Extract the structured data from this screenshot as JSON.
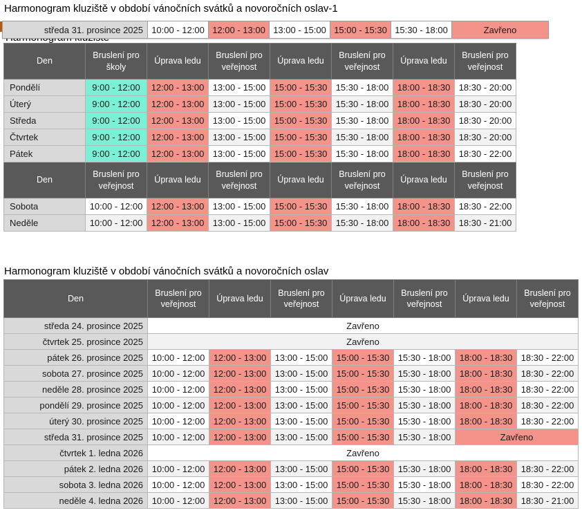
{
  "page": {
    "title1": "Harmonogram kluziště v období vánočních svátků a novoročních oslav-1",
    "title2": "Harmonogram kluziště v období vánočních svátků a novoročních oslav",
    "obscured_text": "Harmonogram kluziště"
  },
  "colors": {
    "header_bg": "#595959",
    "day_bg": "#D9D9D9",
    "alt_bg": "#F2F2F2",
    "red": "#F4938A",
    "cyan": "#7BF0D5"
  },
  "floating_row": {
    "day": "středa 31. prosince 2025",
    "cells": [
      {
        "t": "10:00 - 12:00"
      },
      {
        "t": "12:00 - 13:00",
        "c": "red"
      },
      {
        "t": "13:00 - 15:00"
      },
      {
        "t": "15:00 - 15:30",
        "c": "red"
      },
      {
        "t": "15:30 - 18:00"
      },
      {
        "t": "Zavřeno",
        "c": "red"
      }
    ]
  },
  "weekly_table": {
    "header_top": [
      "Den",
      "Bruslení pro školy",
      "Úprava ledu",
      "Bruslení pro veřejnost",
      "Úprava ledu",
      "Bruslení pro veřejnost",
      "Úprava ledu",
      "Bruslení pro veřejnost"
    ],
    "weekday_rows": [
      {
        "day": "Pondělí",
        "cells": [
          {
            "t": "9:00 - 12:00",
            "c": "cyan"
          },
          {
            "t": "12:00 - 13:00",
            "c": "red"
          },
          {
            "t": "13:00 - 15:00"
          },
          {
            "t": "15:00 - 15:30",
            "c": "red"
          },
          {
            "t": "15:30 - 18:00"
          },
          {
            "t": "18:00 - 18:30",
            "c": "red"
          },
          {
            "t": "18:30 - 20:00"
          }
        ]
      },
      {
        "day": "Úterý",
        "cells": [
          {
            "t": "9:00 - 12:00",
            "c": "cyan"
          },
          {
            "t": "12:00 - 13:00",
            "c": "red"
          },
          {
            "t": "13:00 - 15:00"
          },
          {
            "t": "15:00 - 15:30",
            "c": "red"
          },
          {
            "t": "15:30 - 18:00"
          },
          {
            "t": "18:00 - 18:30",
            "c": "red"
          },
          {
            "t": "18:30 - 20:00"
          }
        ]
      },
      {
        "day": "Středa",
        "cells": [
          {
            "t": "9:00 - 12:00",
            "c": "cyan"
          },
          {
            "t": "12:00 - 13:00",
            "c": "red"
          },
          {
            "t": "13:00 - 15:00"
          },
          {
            "t": "15:00 - 15:30",
            "c": "red"
          },
          {
            "t": "15:30 - 18:00"
          },
          {
            "t": "18:00 - 18:30",
            "c": "red"
          },
          {
            "t": "18:30 - 20:00"
          }
        ]
      },
      {
        "day": "Čtvrtek",
        "cells": [
          {
            "t": "9:00 - 12:00",
            "c": "cyan"
          },
          {
            "t": "12:00 - 13:00",
            "c": "red"
          },
          {
            "t": "13:00 - 15:00"
          },
          {
            "t": "15:00 - 15:30",
            "c": "red"
          },
          {
            "t": "15:30 - 18:00"
          },
          {
            "t": "18:00 - 18:30",
            "c": "red"
          },
          {
            "t": "18:30 - 20:00"
          }
        ]
      },
      {
        "day": "Pátek",
        "cells": [
          {
            "t": "9:00 - 12:00",
            "c": "cyan"
          },
          {
            "t": "12:00 - 13:00",
            "c": "red"
          },
          {
            "t": "13:00 - 15:00"
          },
          {
            "t": "15:00 - 15:30",
            "c": "red"
          },
          {
            "t": "15:30 - 18:00"
          },
          {
            "t": "18:00 - 18:30",
            "c": "red"
          },
          {
            "t": "18:30 - 22:00"
          }
        ]
      }
    ],
    "header_bottom": [
      "Den",
      "Bruslení pro veřejnost",
      "Úprava ledu",
      "Bruslení pro veřejnost",
      "Úprava ledu",
      "Bruslení pro veřejnost",
      "Úprava ledu",
      "Bruslení pro veřejnost"
    ],
    "weekend_rows": [
      {
        "day": "Sobota",
        "cells": [
          {
            "t": "10:00 - 12:00"
          },
          {
            "t": "12:00 - 13:00",
            "c": "red"
          },
          {
            "t": "13:00 - 15:00"
          },
          {
            "t": "15:00 - 15:30",
            "c": "red"
          },
          {
            "t": "15:30 - 18:00"
          },
          {
            "t": "18:00 - 18:30",
            "c": "red"
          },
          {
            "t": "18:30 - 22:00"
          }
        ]
      },
      {
        "day": "Neděle",
        "cells": [
          {
            "t": "10:00 - 12:00"
          },
          {
            "t": "12:00 - 13:00",
            "c": "red"
          },
          {
            "t": "13:00 - 15:00"
          },
          {
            "t": "15:00 - 15:30",
            "c": "red"
          },
          {
            "t": "15:30 - 18:00"
          },
          {
            "t": "18:00 - 18:30",
            "c": "red"
          },
          {
            "t": "18:30 - 21:00"
          }
        ]
      }
    ]
  },
  "holiday_table": {
    "header": [
      "Den",
      "Bruslení pro veřejnost",
      "Úprava ledu",
      "Bruslení pro veřejnost",
      "Úprava ledu",
      "Bruslení pro veřejnost",
      "Úprava ledu",
      "Bruslení pro veřejnost"
    ],
    "rows": [
      {
        "day": "středa 24. prosince 2025",
        "cells": [
          {
            "t": "Zavřeno",
            "s": 7
          }
        ]
      },
      {
        "day": "čtvrtek 25. prosince 2025",
        "cells": [
          {
            "t": "Zavřeno",
            "s": 7
          }
        ]
      },
      {
        "day": "pátek 26. prosince 2025",
        "cells": [
          {
            "t": "10:00 - 12:00"
          },
          {
            "t": "12:00 - 13:00",
            "c": "red"
          },
          {
            "t": "13:00 - 15:00"
          },
          {
            "t": "15:00 - 15:30",
            "c": "red"
          },
          {
            "t": "15:30 - 18:00"
          },
          {
            "t": "18:00 - 18:30",
            "c": "red"
          },
          {
            "t": "18:30 - 22:00"
          }
        ]
      },
      {
        "day": "sobota 27. prosince 2025",
        "cells": [
          {
            "t": "10:00 - 12:00"
          },
          {
            "t": "12:00 - 13:00",
            "c": "red"
          },
          {
            "t": "13:00 - 15:00"
          },
          {
            "t": "15:00 - 15:30",
            "c": "red"
          },
          {
            "t": "15:30 - 18:00"
          },
          {
            "t": "18:00 - 18:30",
            "c": "red"
          },
          {
            "t": "18:30 - 22:00"
          }
        ]
      },
      {
        "day": "neděle 28. prosince 2025",
        "cells": [
          {
            "t": "10:00 - 12:00"
          },
          {
            "t": "12:00 - 13:00",
            "c": "red"
          },
          {
            "t": "13:00 - 15:00"
          },
          {
            "t": "15:00 - 15:30",
            "c": "red"
          },
          {
            "t": "15:30 - 18:00"
          },
          {
            "t": "18:00 - 18:30",
            "c": "red"
          },
          {
            "t": "18:30 - 22:00"
          }
        ]
      },
      {
        "day": "pondělí 29. prosince 2025",
        "cells": [
          {
            "t": "10:00 - 12:00"
          },
          {
            "t": "12:00 - 13:00",
            "c": "red"
          },
          {
            "t": "13:00 - 15:00"
          },
          {
            "t": "15:00 - 15:30",
            "c": "red"
          },
          {
            "t": "15:30 - 18:00"
          },
          {
            "t": "18:00 - 18:30",
            "c": "red"
          },
          {
            "t": "18:30 - 22:00"
          }
        ]
      },
      {
        "day": "úterý 30. prosince 2025",
        "cells": [
          {
            "t": "10:00 - 12:00"
          },
          {
            "t": "12:00 - 13:00",
            "c": "red"
          },
          {
            "t": "13:00 - 15:00"
          },
          {
            "t": "15:00 - 15:30",
            "c": "red"
          },
          {
            "t": "15:30 - 18:00"
          },
          {
            "t": "18:00 - 18:30",
            "c": "red"
          },
          {
            "t": "18:30 - 22:00"
          }
        ]
      },
      {
        "day": "středa 31. prosince 2025",
        "cells": [
          {
            "t": "10:00 - 12:00"
          },
          {
            "t": "12:00 - 13:00",
            "c": "red"
          },
          {
            "t": "13:00 - 15:00"
          },
          {
            "t": "15:00 - 15:30",
            "c": "red"
          },
          {
            "t": "15:30 - 18:00"
          },
          {
            "t": "Zavřeno",
            "c": "red",
            "s": 2
          }
        ]
      },
      {
        "day": "čtvrtek 1. ledna 2026",
        "cells": [
          {
            "t": "Zavřeno",
            "s": 7
          }
        ]
      },
      {
        "day": "pátek 2. ledna 2026",
        "cells": [
          {
            "t": "10:00 - 12:00"
          },
          {
            "t": "12:00 - 13:00",
            "c": "red"
          },
          {
            "t": "13:00 - 15:00"
          },
          {
            "t": "15:00 - 15:30",
            "c": "red"
          },
          {
            "t": "15:30 - 18:00"
          },
          {
            "t": "18:00 - 18:30",
            "c": "red"
          },
          {
            "t": "18:30 - 22:00"
          }
        ]
      },
      {
        "day": "sobota 3. ledna 2026",
        "cells": [
          {
            "t": "10:00 - 12:00"
          },
          {
            "t": "12:00 - 13:00",
            "c": "red"
          },
          {
            "t": "13:00 - 15:00"
          },
          {
            "t": "15:00 - 15:30",
            "c": "red"
          },
          {
            "t": "15:30 - 18:00"
          },
          {
            "t": "18:00 - 18:30",
            "c": "red"
          },
          {
            "t": "18:30 - 22:00"
          }
        ]
      },
      {
        "day": "neděle 4. ledna 2026",
        "cells": [
          {
            "t": "10:00 - 12:00"
          },
          {
            "t": "12:00 - 13:00",
            "c": "red"
          },
          {
            "t": "13:00 - 15:00"
          },
          {
            "t": "15:00 - 15:30",
            "c": "red"
          },
          {
            "t": "15:30 - 18:00"
          },
          {
            "t": "18:00 - 18:30",
            "c": "red"
          },
          {
            "t": "18:30 - 21:00"
          }
        ]
      }
    ]
  }
}
